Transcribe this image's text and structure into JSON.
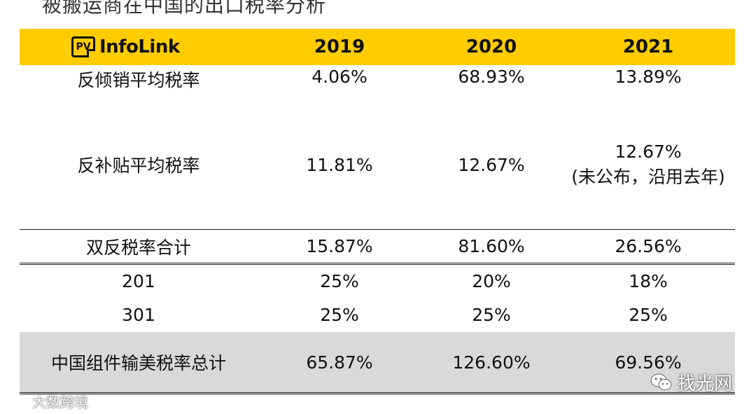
{
  "top_cut_text": "被搬运商在中国的出口税率分析",
  "header": {
    "logo_pv": "PV",
    "logo_text": "InfoLink",
    "years": [
      "2019",
      "2020",
      "2021"
    ]
  },
  "rows": {
    "antidumping": {
      "label": "反倾销平均税率",
      "values": [
        "4.06%",
        "68.93%",
        "13.89%"
      ]
    },
    "countervailing": {
      "label": "反补贴平均税率",
      "values": [
        "11.81%",
        "12.67%",
        "12.67%"
      ],
      "note_2021": "(未公布，沿用去年)"
    },
    "double_sum": {
      "label": "双反税率合计",
      "values": [
        "15.87%",
        "81.60%",
        "26.56%"
      ]
    },
    "s201": {
      "label": "201",
      "values": [
        "25%",
        "20%",
        "18%"
      ]
    },
    "s301": {
      "label": "301",
      "values": [
        "25%",
        "25%",
        "25%"
      ]
    },
    "total": {
      "label": "中国组件输美税率总计",
      "values": [
        "65.87%",
        "126.60%",
        "69.56%"
      ]
    }
  },
  "watermarks": {
    "left": "大数跨境",
    "right": "找光网"
  }
}
